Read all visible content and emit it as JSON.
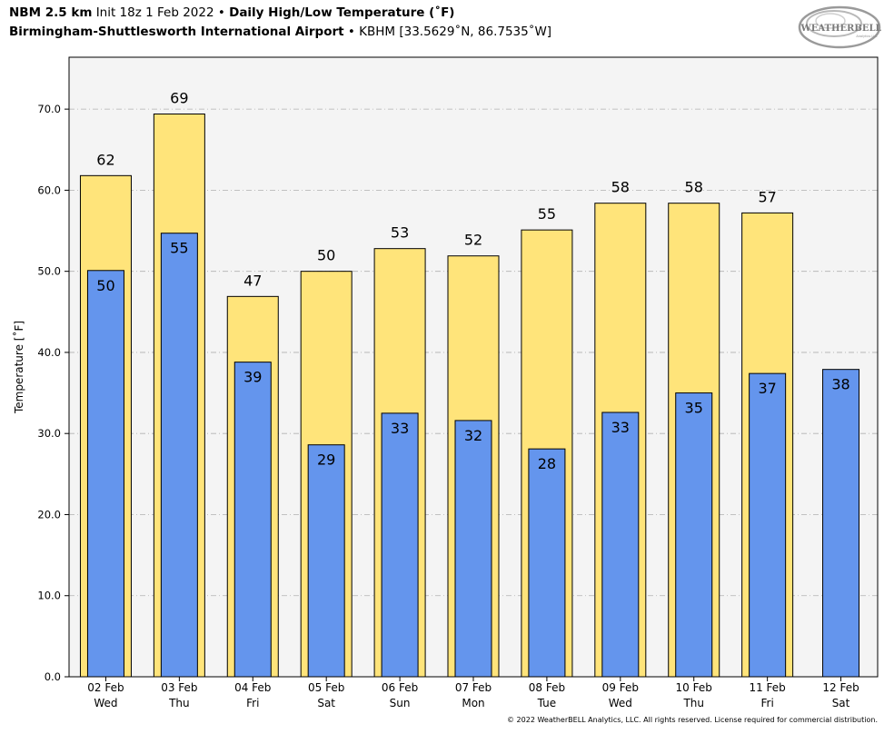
{
  "header": {
    "line1": {
      "model": "NBM 2.5 km",
      "init": "Init 18z 1 Feb 2022",
      "bullet": "•",
      "product": "Daily High/Low Temperature (˚F)"
    },
    "line2": {
      "station_name": "Birmingham-Shuttlesworth International Airport",
      "bullet": "•",
      "station_info": "KBHM [33.5629˚N, 86.7535˚W]"
    }
  },
  "logo": {
    "text_main": "WEATHERBELL",
    "text_sub": "Analytics LLC"
  },
  "footer": {
    "copyright": "© 2022 WeatherBELL Analytics, LLC. All rights reserved. License required for commercial distribution."
  },
  "colors": {
    "high_bar": "#FFE47A",
    "low_bar": "#6495ED",
    "plot_bg": "#F4F4F4",
    "grid": "#B0B0B0"
  },
  "chart_data": {
    "type": "bar",
    "title": "Daily High/Low Temperature (˚F)",
    "xlabel": "",
    "ylabel": "Temperature [˚F]",
    "ylim": [
      0,
      76.4
    ],
    "yticks": [
      0,
      10,
      20,
      30,
      40,
      50,
      60,
      70
    ],
    "ytick_labels": [
      "0.0",
      "10.0",
      "20.0",
      "30.0",
      "40.0",
      "50.0",
      "60.0",
      "70.0"
    ],
    "grid": true,
    "categories": [
      {
        "date": "02 Feb",
        "day": "Wed"
      },
      {
        "date": "03 Feb",
        "day": "Thu"
      },
      {
        "date": "04 Feb",
        "day": "Fri"
      },
      {
        "date": "05 Feb",
        "day": "Sat"
      },
      {
        "date": "06 Feb",
        "day": "Sun"
      },
      {
        "date": "07 Feb",
        "day": "Mon"
      },
      {
        "date": "08 Feb",
        "day": "Tue"
      },
      {
        "date": "09 Feb",
        "day": "Wed"
      },
      {
        "date": "10 Feb",
        "day": "Thu"
      },
      {
        "date": "11 Feb",
        "day": "Fri"
      },
      {
        "date": "12 Feb",
        "day": "Sat"
      }
    ],
    "series": [
      {
        "name": "High",
        "values": [
          61.8,
          69.4,
          46.9,
          50.0,
          52.8,
          51.9,
          55.1,
          58.4,
          58.4,
          57.2,
          null
        ],
        "labels": [
          "62",
          "69",
          "47",
          "50",
          "53",
          "52",
          "55",
          "58",
          "58",
          "57",
          ""
        ]
      },
      {
        "name": "Low",
        "values": [
          50.1,
          54.7,
          38.8,
          28.6,
          32.5,
          31.6,
          28.1,
          32.6,
          35.0,
          37.4,
          37.9
        ],
        "labels": [
          "50",
          "55",
          "39",
          "29",
          "33",
          "32",
          "28",
          "33",
          "35",
          "37",
          "38"
        ]
      }
    ]
  }
}
